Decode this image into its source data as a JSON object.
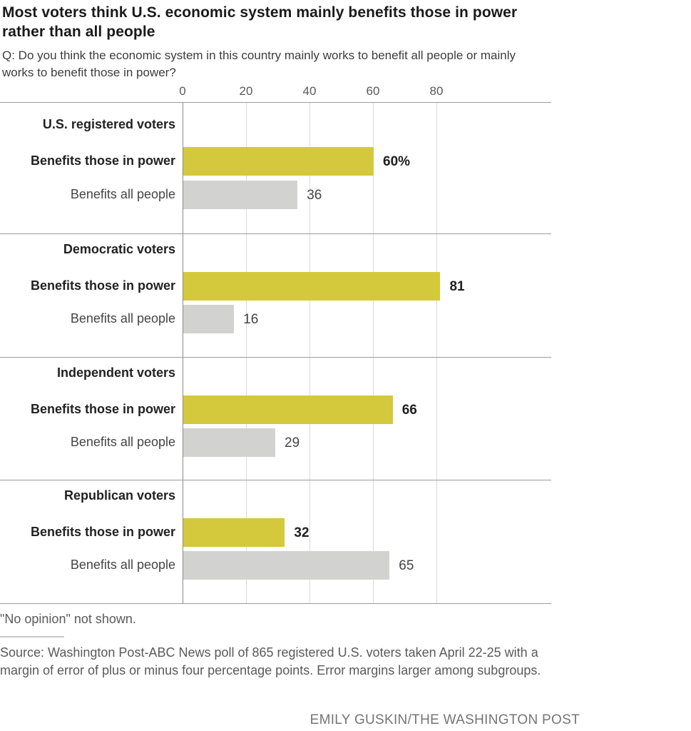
{
  "title": "Most voters think U.S. economic system mainly benefits those in power rather than all people",
  "question": "Q: Do you think the economic system in this country mainly works to benefit all people or mainly works to benefit those in power?",
  "footnote": "\"No opinion\" not shown.",
  "source": "Source: Washington Post-ABC News poll of 865 registered U.S. voters taken April 22-25 with a margin of error of plus or minus four percentage points. Error margins larger among subgroups.",
  "credit": "EMILY GUSKIN/THE WASHINGTON POST",
  "colors": {
    "bar_power": "#d4c83c",
    "bar_all": "#d2d2d0",
    "zero_axis": "#8a8a8a",
    "gridline": "#dbdbdb",
    "separator": "#9b9b9b"
  },
  "chart_data": {
    "type": "bar",
    "orientation": "horizontal",
    "title": "Most voters think U.S. economic system mainly benefits those in power rather than all people",
    "subtitle": "Q: Do you think the economic system in this country mainly works to benefit all people or mainly works to benefit those in power?",
    "xlabel": "",
    "ylabel": "",
    "unit": "percent",
    "xlim": [
      0,
      100
    ],
    "xticks": [
      0,
      20,
      40,
      60,
      80
    ],
    "grid": true,
    "legend": "none",
    "series_names": [
      "Benefits those in power",
      "Benefits all people"
    ],
    "groups": [
      {
        "label": "U.S. registered voters",
        "values": [
          60,
          36
        ],
        "displays": [
          "60%",
          "36"
        ]
      },
      {
        "label": "Democratic voters",
        "values": [
          81,
          16
        ],
        "displays": [
          "81",
          "16"
        ]
      },
      {
        "label": "Independent voters",
        "values": [
          66,
          29
        ],
        "displays": [
          "66",
          "29"
        ]
      },
      {
        "label": "Republican voters",
        "values": [
          32,
          65
        ],
        "displays": [
          "32",
          "65"
        ]
      }
    ]
  }
}
